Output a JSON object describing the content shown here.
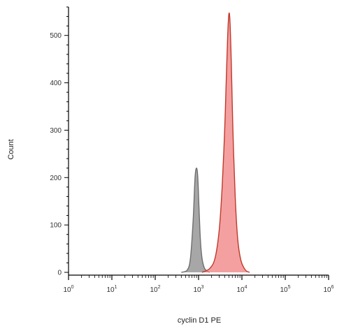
{
  "chart_data": {
    "type": "area",
    "title": "",
    "xlabel": "cyclin D1 PE",
    "ylabel": "Count",
    "x_scale": "log",
    "xlim": [
      1,
      1000000
    ],
    "ylim": [
      0,
      560
    ],
    "x_ticks": [
      {
        "value": 1,
        "label": "10",
        "exp": "0"
      },
      {
        "value": 10,
        "label": "10",
        "exp": "1"
      },
      {
        "value": 100,
        "label": "10",
        "exp": "2"
      },
      {
        "value": 1000,
        "label": "10",
        "exp": "3"
      },
      {
        "value": 10000,
        "label": "10",
        "exp": "4"
      },
      {
        "value": 100000,
        "label": "10",
        "exp": "5"
      },
      {
        "value": 1000000,
        "label": "10",
        "exp": "6"
      }
    ],
    "y_ticks": [
      0,
      100,
      200,
      300,
      400,
      500
    ],
    "grid": false,
    "legend": "none",
    "series": [
      {
        "color": "#6e6e6e",
        "fill": "#8a8a8a",
        "x": [
          400,
          550,
          650,
          750,
          830,
          900,
          960,
          1020,
          1100,
          1200,
          1350,
          1550,
          1800
        ],
        "y": [
          0,
          5,
          30,
          110,
          200,
          220,
          200,
          140,
          70,
          30,
          10,
          3,
          0
        ]
      },
      {
        "color": "#c0392b",
        "fill": "#f08080",
        "x": [
          1200,
          1800,
          2400,
          3000,
          3500,
          4000,
          4400,
          4700,
          5000,
          5300,
          5700,
          6200,
          7000,
          8000,
          9500,
          12000,
          15000
        ],
        "y": [
          0,
          8,
          30,
          90,
          180,
          300,
          420,
          500,
          545,
          530,
          440,
          300,
          160,
          70,
          25,
          5,
          0
        ]
      }
    ]
  }
}
